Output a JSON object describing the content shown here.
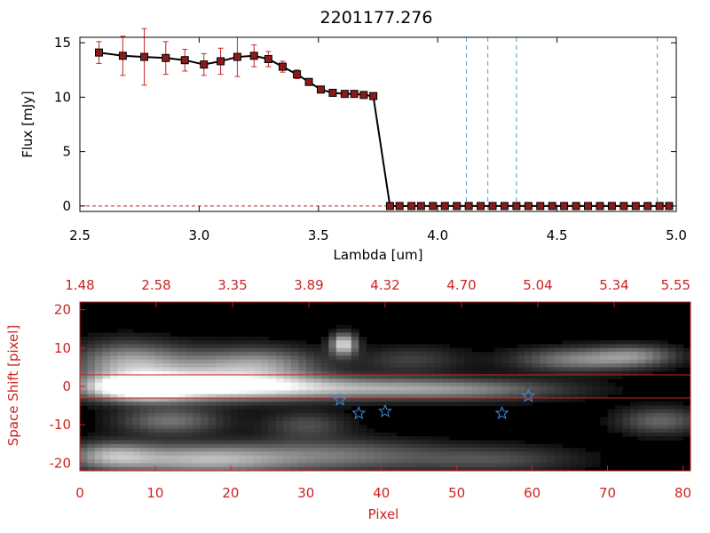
{
  "title": "2201177.276",
  "colors": {
    "red": "#cc2222",
    "blue_marker": "#3a8fe0",
    "dashed_line": "#4aa0d8",
    "black": "#000000"
  },
  "chart_data": [
    {
      "type": "line",
      "title": "2201177.276",
      "xlabel": "Lambda [um]",
      "ylabel": "Flux [mJy]",
      "xlim": [
        2.5,
        5.0
      ],
      "ylim": [
        -0.5,
        15.5
      ],
      "xticks": [
        "2.5",
        "3.0",
        "3.5",
        "4.0",
        "4.5",
        "5.0"
      ],
      "yticks": [
        "0",
        "5",
        "10",
        "15"
      ],
      "series": [
        {
          "x": [
            2.58,
            2.68,
            2.77,
            2.86,
            2.94,
            3.02,
            3.09,
            3.16,
            3.23,
            3.29,
            3.35,
            3.41,
            3.46,
            3.51,
            3.56,
            3.61,
            3.65,
            3.69,
            3.73,
            3.8,
            3.84,
            3.89,
            3.93,
            3.98,
            4.03,
            4.08,
            4.13,
            4.18,
            4.23,
            4.28,
            4.33,
            4.38,
            4.43,
            4.48,
            4.53,
            4.58,
            4.63,
            4.68,
            4.73,
            4.78,
            4.83,
            4.88,
            4.93,
            4.97
          ],
          "y": [
            14.1,
            13.8,
            13.7,
            13.6,
            13.4,
            13.0,
            13.3,
            13.7,
            13.8,
            13.5,
            12.8,
            12.1,
            11.4,
            10.7,
            10.4,
            10.3,
            10.3,
            10.2,
            10.1,
            0,
            0,
            0,
            0,
            0,
            0,
            0,
            0,
            0,
            0,
            0,
            0,
            0,
            0,
            0,
            0,
            0,
            0,
            0,
            0,
            0,
            0,
            0,
            0,
            0
          ],
          "yerr": [
            1.0,
            1.8,
            2.6,
            1.5,
            1.0,
            1.0,
            1.2,
            1.8,
            1.0,
            0.7,
            0.5,
            0.4,
            0.3,
            0.3,
            0.2,
            0.2,
            0.2,
            0.2,
            0.2,
            0,
            0,
            0,
            0,
            0,
            0,
            0,
            0,
            0,
            0,
            0,
            0,
            0,
            0,
            0,
            0,
            0,
            0,
            0,
            0,
            0,
            0,
            0,
            0,
            0
          ]
        }
      ],
      "vertical_dashed_lines_x": [
        4.12,
        4.21,
        4.33,
        4.92
      ],
      "zero_reference_line": true
    },
    {
      "type": "heatmap",
      "xlabel": "Pixel",
      "ylabel": "Space Shift [pixel]",
      "xlim": [
        0,
        81
      ],
      "ylim": [
        -22,
        22
      ],
      "xticks": [
        "0",
        "10",
        "20",
        "30",
        "40",
        "50",
        "60",
        "70",
        "80"
      ],
      "yticks": [
        "-20",
        "-10",
        "0",
        "10",
        "20"
      ],
      "top_axis_ticks": [
        "1.48",
        "2.58",
        "3.35",
        "3.89",
        "4.32",
        "4.70",
        "5.04",
        "5.34",
        "5.55"
      ],
      "horizontal_lines_y": [
        3,
        -3
      ],
      "star_markers": [
        {
          "x": 34.5,
          "y": -3.5
        },
        {
          "x": 37,
          "y": -7
        },
        {
          "x": 40.5,
          "y": -6.5
        },
        {
          "x": 56,
          "y": -7
        },
        {
          "x": 59.5,
          "y": -2.5
        }
      ],
      "intensity_blobs": [
        {
          "x": 8,
          "y": -0.5,
          "sx": 5,
          "sy": 2.2,
          "v": 1.0
        },
        {
          "x": 18,
          "y": 0,
          "sx": 10,
          "sy": 2.6,
          "v": 0.75
        },
        {
          "x": 36,
          "y": -0.5,
          "sx": 14,
          "sy": 2.0,
          "v": 0.5
        },
        {
          "x": 52,
          "y": -1,
          "sx": 10,
          "sy": 2.0,
          "v": 0.3
        },
        {
          "x": 6,
          "y": 6,
          "sx": 5,
          "sy": 4,
          "v": 0.55
        },
        {
          "x": 18,
          "y": 5,
          "sx": 8,
          "sy": 3.5,
          "v": 0.45
        },
        {
          "x": 35,
          "y": 11,
          "sx": 1.2,
          "sy": 2.0,
          "v": 0.85
        },
        {
          "x": 25,
          "y": 6,
          "sx": 5,
          "sy": 3,
          "v": 0.3
        },
        {
          "x": 44,
          "y": 7,
          "sx": 5,
          "sy": 2.5,
          "v": 0.25
        },
        {
          "x": 66,
          "y": 7,
          "sx": 6,
          "sy": 2.2,
          "v": 0.5
        },
        {
          "x": 74,
          "y": 8,
          "sx": 4,
          "sy": 2.0,
          "v": 0.4
        },
        {
          "x": 12,
          "y": -9,
          "sx": 5,
          "sy": 2.5,
          "v": 0.45
        },
        {
          "x": 30,
          "y": -10,
          "sx": 4,
          "sy": 2.5,
          "v": 0.3
        },
        {
          "x": 77,
          "y": -9,
          "sx": 4,
          "sy": 2.5,
          "v": 0.4
        },
        {
          "x": 16,
          "y": -19,
          "sx": 9,
          "sy": 2.8,
          "v": 0.7
        },
        {
          "x": 4,
          "y": -18,
          "sx": 4,
          "sy": 2.5,
          "v": 0.5
        },
        {
          "x": 35,
          "y": -18,
          "sx": 9,
          "sy": 3.0,
          "v": 0.4
        },
        {
          "x": 55,
          "y": -19,
          "sx": 8,
          "sy": 2.5,
          "v": 0.3
        }
      ]
    }
  ]
}
